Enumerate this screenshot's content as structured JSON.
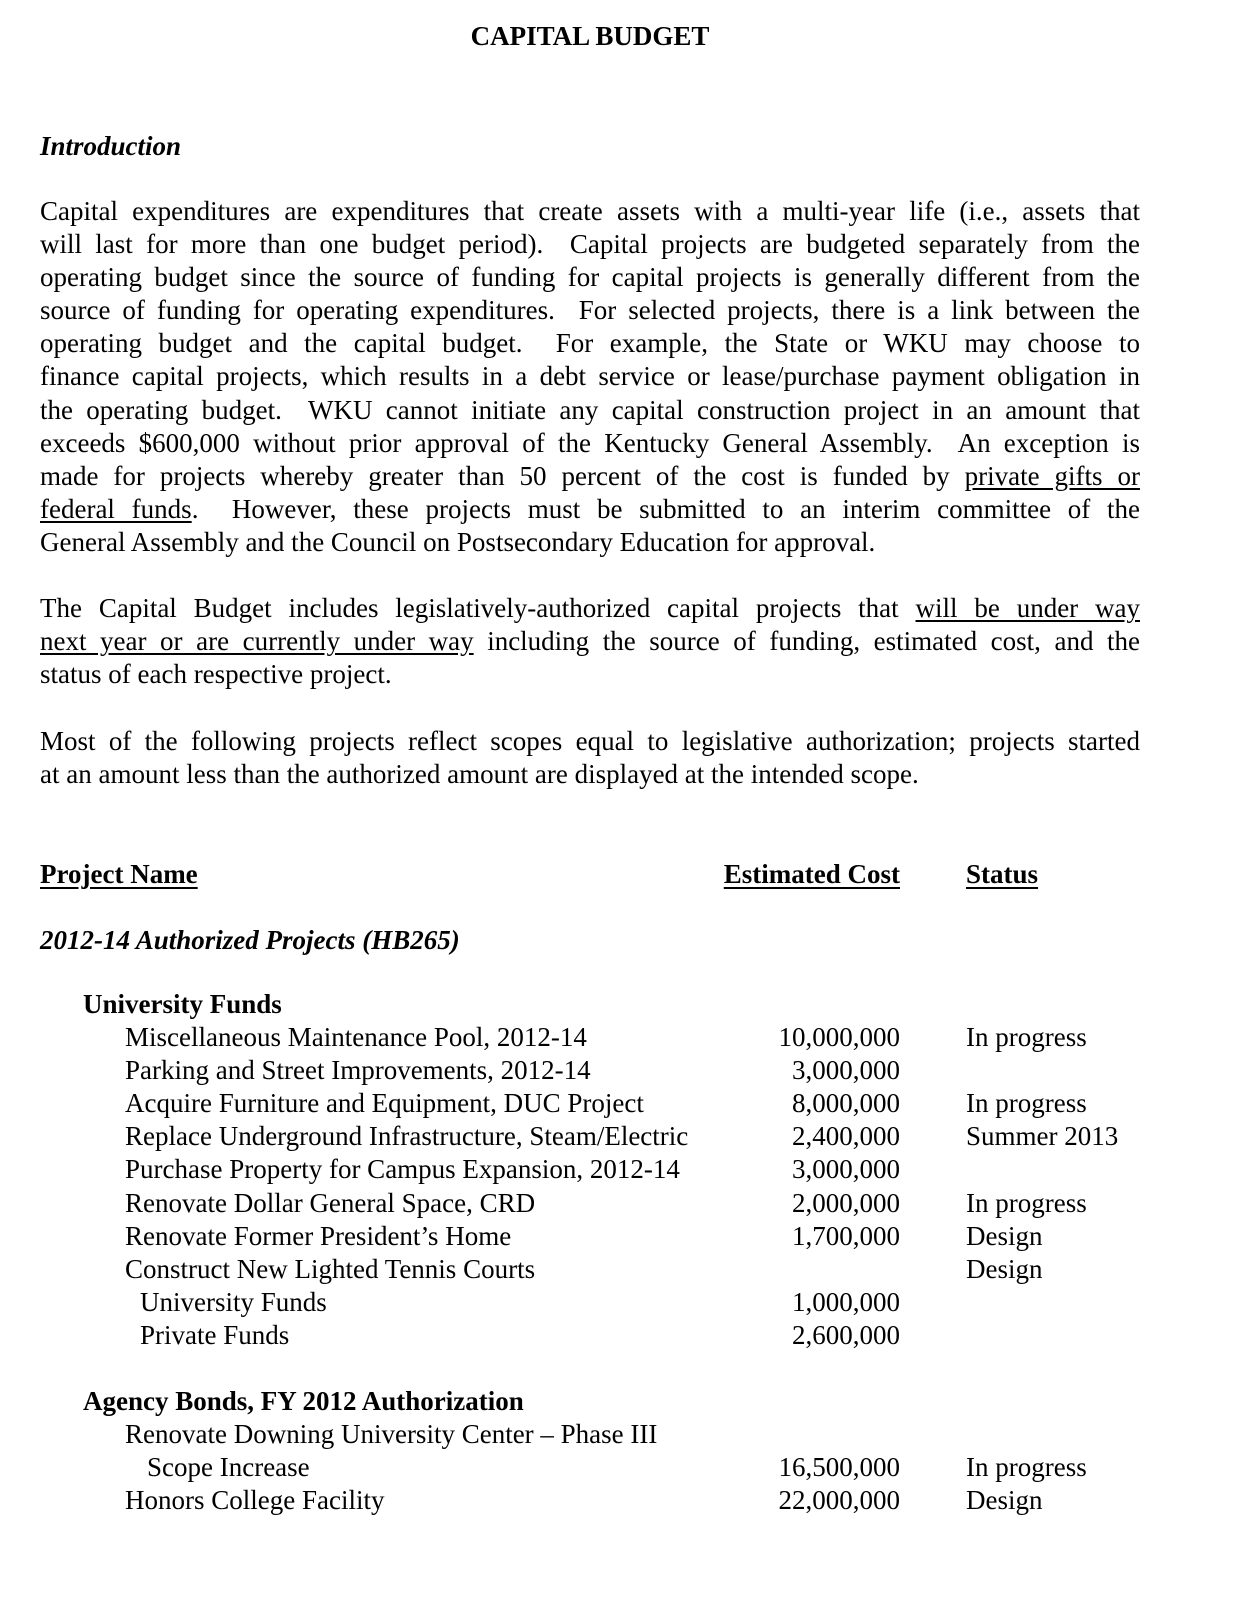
{
  "title": "CAPITAL BUDGET",
  "intro_heading": "Introduction",
  "paragraphs": [
    [
      [
        {
          "t": "Capital expenditures are expenditures that create assets with a multi-year life (i.e., assets that"
        }
      ],
      [
        {
          "t": "will last for more than one budget period).  Capital projects are budgeted separately from the"
        }
      ],
      [
        {
          "t": "operating budget since the source of funding for capital projects is generally different from the"
        }
      ],
      [
        {
          "t": "source of funding for operating expenditures.  For selected projects, there is a link between the"
        }
      ],
      [
        {
          "t": "operating budget and the capital budget.  For example, the State or WKU may choose to"
        }
      ],
      [
        {
          "t": "finance capital projects, which results in a debt service or lease/purchase payment obligation in"
        }
      ],
      [
        {
          "t": "the operating budget.  WKU cannot initiate any capital construction project in an amount that"
        }
      ],
      [
        {
          "t": "exceeds $600,000 without prior approval of the Kentucky General Assembly.  An exception is"
        }
      ],
      [
        {
          "t": "made for projects whereby greater than 50 percent of the cost is funded by "
        },
        {
          "t": "private gifts or",
          "u": true
        }
      ],
      [
        {
          "t": "federal funds",
          "u": true
        },
        {
          "t": ".  However, these projects must be submitted to an interim committee of the"
        }
      ],
      [
        {
          "t": "General Assembly and the Council on Postsecondary Education for approval."
        }
      ]
    ],
    [
      [
        {
          "t": "The Capital Budget includes legislatively-authorized capital projects that "
        },
        {
          "t": "will be under way",
          "u": true
        }
      ],
      [
        {
          "t": "next year or are currently under way",
          "u": true
        },
        {
          "t": " including the source of funding, estimated cost, and the"
        }
      ],
      [
        {
          "t": "status of each respective project."
        }
      ]
    ],
    [
      [
        {
          "t": "Most of the following projects reflect scopes equal to legislative authorization; projects started"
        }
      ],
      [
        {
          "t": "at an amount less than the authorized amount are displayed at the intended scope."
        }
      ]
    ]
  ],
  "table": {
    "headers": {
      "name": "Project Name",
      "cost": "Estimated Cost",
      "status": "Status"
    },
    "section": "2012-14 Authorized Projects (HB265)",
    "groups": [
      {
        "heading": "University Funds",
        "rows": [
          {
            "name": "Miscellaneous Maintenance Pool, 2012-14",
            "cost": "10,000,000",
            "status": "In progress"
          },
          {
            "name": "Parking and Street Improvements, 2012-14",
            "cost": "3,000,000",
            "status": ""
          },
          {
            "name": "Acquire Furniture and Equipment, DUC Project",
            "cost": "8,000,000",
            "status": "In progress"
          },
          {
            "name": "Replace Underground Infrastructure, Steam/Electric",
            "cost": "2,400,000",
            "status": "Summer 2013"
          },
          {
            "name": "Purchase Property for Campus Expansion, 2012-14",
            "cost": "3,000,000",
            "status": ""
          },
          {
            "name": "Renovate Dollar General Space, CRD",
            "cost": "2,000,000",
            "status": "In progress"
          },
          {
            "name": "Renovate Former President’s Home",
            "cost": "1,700,000",
            "status": "Design"
          },
          {
            "name": "Construct New Lighted Tennis Courts",
            "cost": "",
            "status": "Design"
          },
          {
            "name": "University Funds",
            "cost": "1,000,000",
            "status": "",
            "sub": 1
          },
          {
            "name": "Private Funds",
            "cost": "2,600,000",
            "status": "",
            "sub": 1
          }
        ]
      },
      {
        "heading": "Agency Bonds, FY 2012 Authorization",
        "rows": [
          {
            "name": "Renovate Downing University Center – Phase III",
            "cost": "",
            "status": ""
          },
          {
            "name": "Scope Increase",
            "cost": "16,500,000",
            "status": "In progress",
            "sub": 2
          },
          {
            "name": "Honors College Facility",
            "cost": "22,000,000",
            "status": "Design"
          }
        ]
      }
    ]
  }
}
